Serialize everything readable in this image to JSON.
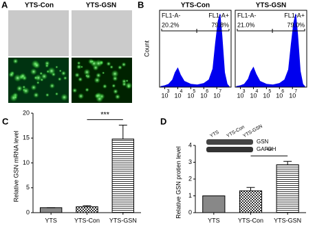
{
  "panels": [
    "A",
    "B",
    "C",
    "D"
  ],
  "images": {
    "titles": [
      "YTS-Con",
      "YTS-GSN"
    ]
  },
  "chart_data": [
    {
      "type": "area",
      "title": "YTS-Con",
      "ylabel": "Count",
      "color": "#0000ee",
      "x": [
        2.7,
        3.0,
        3.3,
        3.6,
        3.8,
        4.0,
        4.2,
        4.5,
        5.0,
        5.5,
        6.0,
        6.4,
        6.7,
        6.9,
        7.1,
        7.25,
        7.4,
        7.6,
        7.8,
        7.95
      ],
      "values": [
        1,
        2,
        4,
        10,
        20,
        26,
        17,
        8,
        4,
        3,
        5,
        10,
        25,
        60,
        90,
        100,
        70,
        20,
        4,
        1
      ],
      "xlim": [
        2.6,
        8.1
      ],
      "ylim": [
        0,
        105
      ],
      "xticks": [
        3,
        4,
        5,
        6,
        7
      ],
      "xtick_base": "10",
      "gates": [
        {
          "name": "FL1-A-",
          "percent": 20.2,
          "percent_label": "20.2%"
        },
        {
          "name": "FL1-A+",
          "percent": 79.8,
          "percent_label": "79.8%"
        }
      ]
    },
    {
      "type": "area",
      "title": "YTS-GSN",
      "color": "#0000ee",
      "x": [
        2.7,
        3.0,
        3.3,
        3.6,
        3.8,
        4.0,
        4.2,
        4.5,
        5.0,
        5.5,
        6.0,
        6.4,
        6.7,
        6.9,
        7.1,
        7.25,
        7.4,
        7.6,
        7.8,
        7.95
      ],
      "values": [
        1,
        2,
        4,
        11,
        21,
        27,
        18,
        8,
        4,
        3,
        5,
        10,
        24,
        58,
        88,
        100,
        72,
        22,
        4,
        1
      ],
      "xlim": [
        2.6,
        8.1
      ],
      "ylim": [
        0,
        105
      ],
      "xticks": [
        3,
        4,
        5,
        6,
        7
      ],
      "xtick_base": "10",
      "gates": [
        {
          "name": "FL1-A-",
          "percent": 21.0,
          "percent_label": "21.0%"
        },
        {
          "name": "FL1-A+",
          "percent": 79.0,
          "percent_label": "79.0%"
        }
      ]
    },
    {
      "type": "bar",
      "ylabel": "Relative GSN mRNA  level",
      "categories": [
        "YTS",
        "YTS-Con",
        "YTS-GSN"
      ],
      "values": [
        1,
        1.2,
        14.8
      ],
      "errors": [
        0,
        0.2,
        2.8
      ],
      "patterns": [
        "solid",
        "checker",
        "hline"
      ],
      "color": "#888888",
      "ylim": [
        0,
        20
      ],
      "yticks": [
        0,
        5,
        10,
        15,
        20
      ],
      "annotations": [
        {
          "text": "***",
          "from": 1,
          "to": 2
        }
      ]
    },
    {
      "type": "bar",
      "ylabel": "Relative GSN protien  level",
      "categories": [
        "YTS",
        "YTS-Con",
        "YTS-GSN"
      ],
      "values": [
        1,
        1.3,
        2.85
      ],
      "errors": [
        0,
        0.2,
        0.2
      ],
      "patterns": [
        "solid",
        "checker",
        "hline"
      ],
      "color": "#888888",
      "ylim": [
        0,
        4
      ],
      "yticks": [
        0,
        1,
        2,
        3,
        4
      ],
      "annotations": [
        {
          "text": "**",
          "from": 1,
          "to": 2
        }
      ],
      "blot": {
        "lanes": [
          "YTS",
          "YTS-Con",
          "YTS-GSN"
        ],
        "bands": [
          "GSN",
          "GAPDH"
        ]
      }
    }
  ]
}
